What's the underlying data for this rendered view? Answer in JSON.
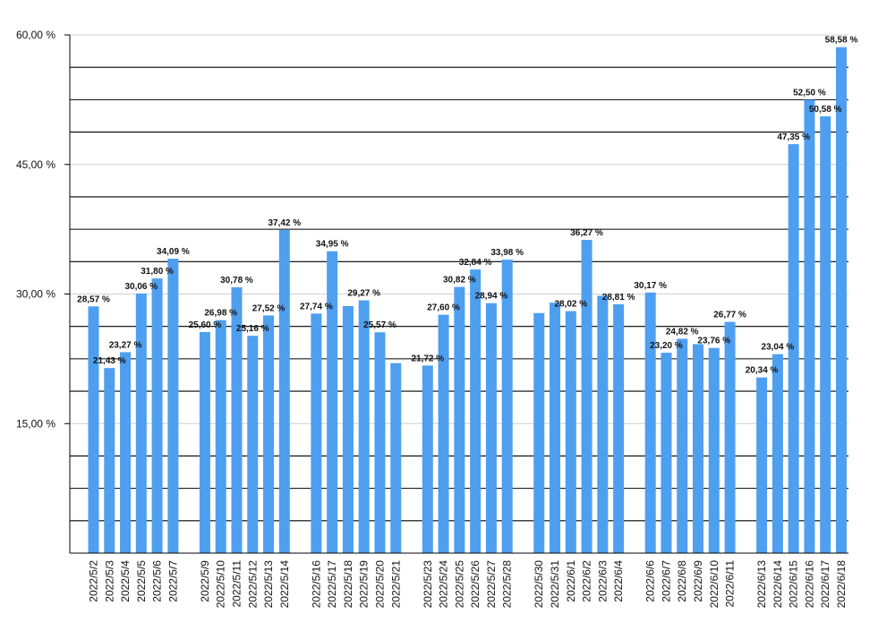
{
  "chart_data": {
    "type": "bar",
    "title": "",
    "xlabel": "",
    "ylabel": "",
    "ylim": [
      0,
      60
    ],
    "y_ticks": [
      {
        "value": 15,
        "label": "15,00 %"
      },
      {
        "value": 30,
        "label": "30,00 %"
      },
      {
        "value": 45,
        "label": "45,00 %"
      },
      {
        "value": 60,
        "label": "60,00 %"
      }
    ],
    "grid": true,
    "bar_color": "#4e9ff0",
    "categories": [
      "2022/5/2",
      "2022/5/3",
      "2022/5/4",
      "2022/5/5",
      "2022/5/6",
      "2022/5/7",
      "2022/5/9",
      "2022/5/10",
      "2022/5/11",
      "2022/5/12",
      "2022/5/13",
      "2022/5/14",
      "2022/5/16",
      "2022/5/17",
      "2022/5/18",
      "2022/5/19",
      "2022/5/20",
      "2022/5/21",
      "2022/5/23",
      "2022/5/24",
      "2022/5/25",
      "2022/5/26",
      "2022/5/27",
      "2022/5/28",
      "2022/5/30",
      "2022/5/31",
      "2022/6/1",
      "2022/6/2",
      "2022/6/3",
      "2022/6/4",
      "2022/6/6",
      "2022/6/7",
      "2022/6/8",
      "2022/6/9",
      "2022/6/10",
      "2022/6/11",
      "2022/6/13",
      "2022/6/14",
      "2022/6/15",
      "2022/6/16",
      "2022/6/17",
      "2022/6/18"
    ],
    "values": [
      28.57,
      21.43,
      23.27,
      30.06,
      31.8,
      34.09,
      25.6,
      26.98,
      30.78,
      25.16,
      27.52,
      37.42,
      27.74,
      34.95,
      28.6,
      29.27,
      25.57,
      22.0,
      21.72,
      27.6,
      30.82,
      32.84,
      28.94,
      33.98,
      27.8,
      29.0,
      28.02,
      36.27,
      29.8,
      28.81,
      30.17,
      23.2,
      24.82,
      24.2,
      23.76,
      26.77,
      20.34,
      23.04,
      47.35,
      52.5,
      50.58,
      58.58
    ],
    "data_labels": [
      "28,57 %",
      "21,43 %",
      "23,27 %",
      "30,06 %",
      "31,80 %",
      "34,09 %",
      "25,60 %",
      "26,98 %",
      "30,78 %",
      "25,16 %",
      "27,52 %",
      "37,42 %",
      "27,74 %",
      "34,95 %",
      "",
      "29,27 %",
      "25,57 %",
      "",
      "21,72 %",
      "27,60 %",
      "30,82 %",
      "32,84 %",
      "28,94 %",
      "33,98 %",
      "",
      "",
      "28,02 %",
      "36,27 %",
      "",
      "28,81 %",
      "30,17 %",
      "23,20 %",
      "24,82 %",
      "",
      "23,76 %",
      "26,77 %",
      "20,34 %",
      "23,04 %",
      "47,35 %",
      "52,50 %",
      "50,58 %",
      "58,58 %"
    ],
    "group_size": 6
  }
}
